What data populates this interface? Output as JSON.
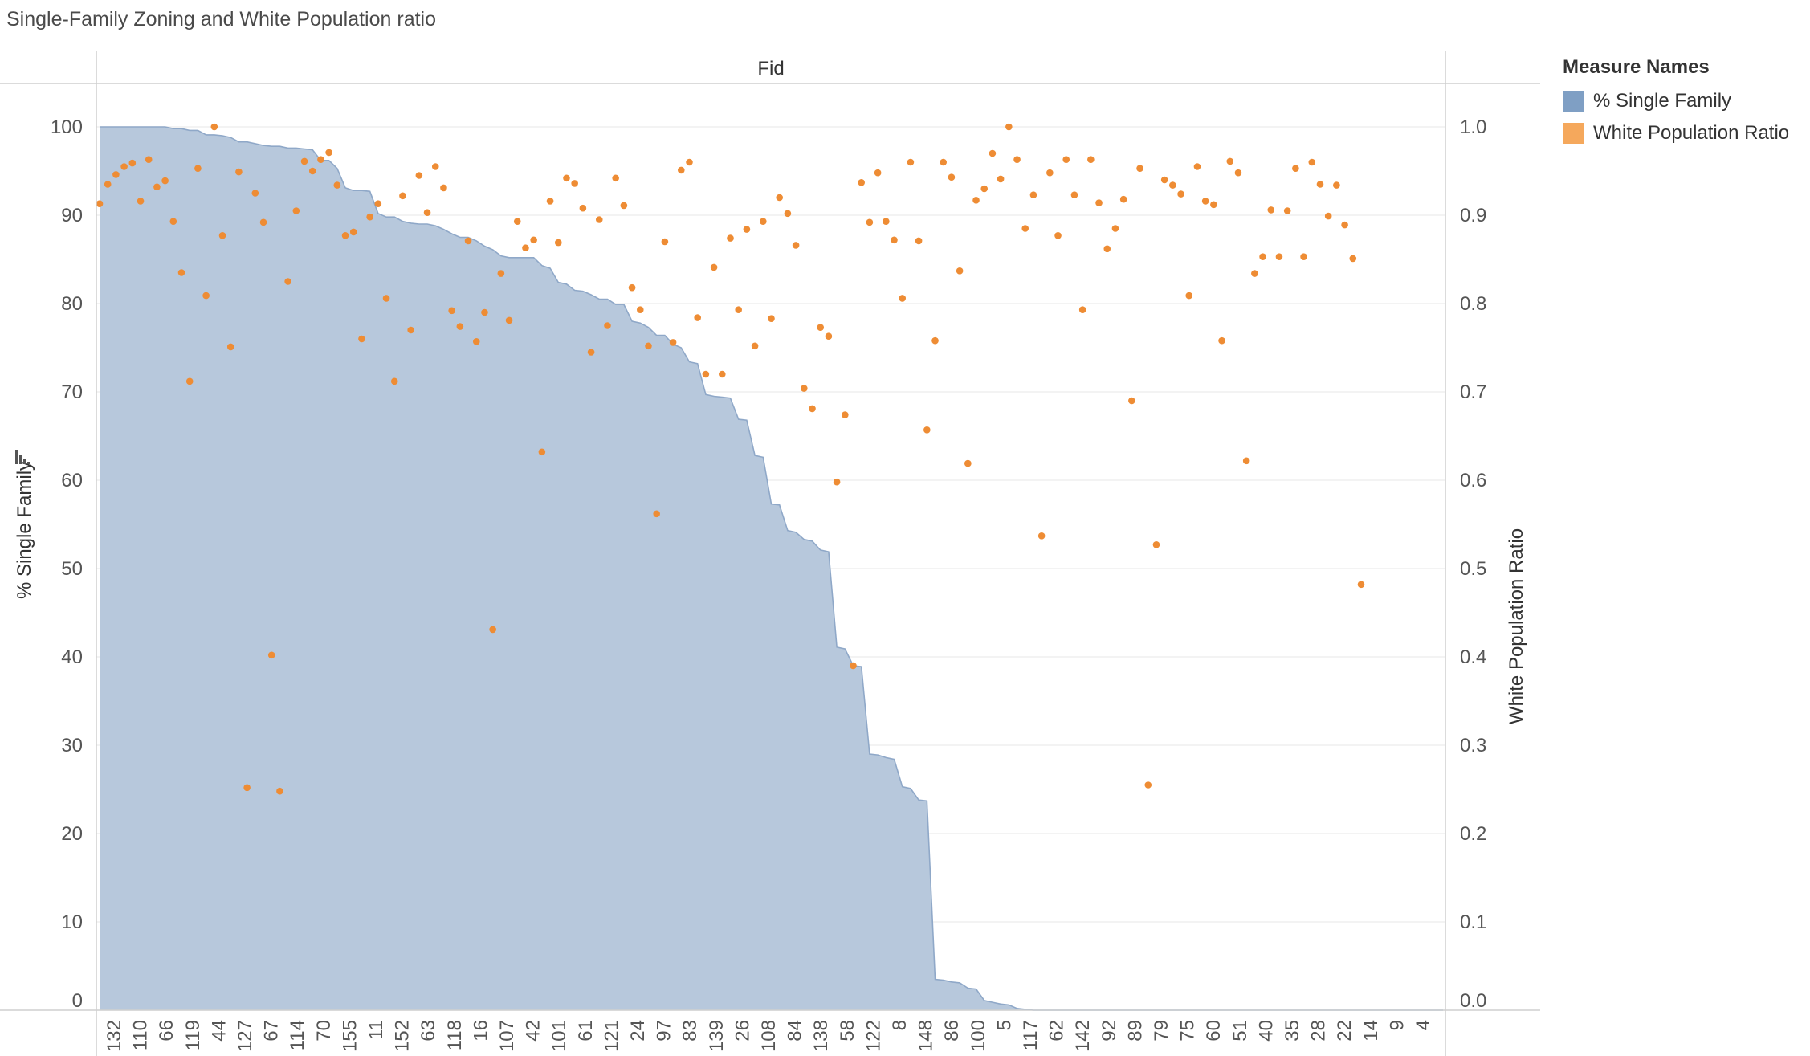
{
  "chart_data": {
    "type": "area+scatter",
    "title": "Single-Family Zoning and White Population ratio",
    "header_label": "Fid",
    "xlabel": "",
    "ylabel": "% Single Family",
    "ylabel_right": "White Population Ratio",
    "ylim": [
      0,
      100
    ],
    "ylim_right": [
      0.0,
      1.0
    ],
    "yticks": [
      0,
      10,
      20,
      30,
      40,
      50,
      60,
      70,
      80,
      90,
      100
    ],
    "yticks_right": [
      "0.0",
      "0.1",
      "0.2",
      "0.3",
      "0.4",
      "0.5",
      "0.6",
      "0.7",
      "0.8",
      "0.9",
      "1.0"
    ],
    "x_tick_labels": [
      "132",
      "110",
      "66",
      "119",
      "44",
      "127",
      "67",
      "114",
      "70",
      "155",
      "11",
      "152",
      "63",
      "118",
      "16",
      "107",
      "42",
      "101",
      "61",
      "121",
      "24",
      "97",
      "83",
      "139",
      "26",
      "108",
      "84",
      "138",
      "58",
      "122",
      "8",
      "148",
      "86",
      "100",
      "5",
      "117",
      "62",
      "142",
      "92",
      "89",
      "79",
      "75",
      "60",
      "51",
      "40",
      "35",
      "28",
      "22",
      "14",
      "9",
      "4"
    ],
    "legend": {
      "title": "Measure Names",
      "placement": "right",
      "items": [
        {
          "label": "% Single Family",
          "color": "#7f9fc4"
        },
        {
          "label": "White Population Ratio",
          "color": "#f5a85c"
        }
      ]
    },
    "series": [
      {
        "name": "% Single Family",
        "type": "area",
        "color": "#b7c8dc",
        "line_color": "#8fa8c8",
        "values": [
          100,
          100,
          100,
          100,
          100,
          100,
          100,
          100,
          100,
          99.8,
          99.8,
          99.6,
          99.6,
          99.1,
          99.1,
          99.0,
          98.8,
          98.3,
          98.3,
          98.1,
          97.9,
          97.8,
          97.8,
          97.6,
          97.6,
          97.5,
          97.4,
          96.2,
          96.2,
          95.3,
          93.1,
          92.8,
          92.8,
          92.7,
          90.2,
          89.8,
          89.8,
          89.3,
          89.1,
          89.0,
          89.0,
          88.8,
          88.4,
          87.9,
          87.5,
          87.5,
          87.1,
          86.5,
          86.1,
          85.4,
          85.2,
          85.2,
          85.2,
          85.2,
          84.3,
          84.0,
          82.4,
          82.2,
          81.5,
          81.4,
          81.0,
          80.5,
          80.5,
          79.9,
          79.9,
          78.0,
          77.8,
          77.3,
          76.4,
          76.4,
          75.4,
          75.0,
          73.4,
          73.2,
          69.7,
          69.5,
          69.4,
          69.3,
          66.9,
          66.8,
          62.8,
          62.6,
          57.3,
          57.2,
          54.3,
          54.1,
          53.3,
          53.1,
          52.1,
          51.9,
          41.1,
          40.9,
          39.0,
          38.9,
          29.0,
          28.9,
          28.6,
          28.4,
          25.3,
          25.1,
          23.8,
          23.7,
          3.5,
          3.4,
          3.2,
          3.1,
          2.5,
          2.4,
          1.1,
          0.9,
          0.7,
          0.6,
          0.2,
          0.1,
          0,
          0,
          0,
          0,
          0,
          0,
          0,
          0,
          0,
          0,
          0,
          0,
          0,
          0,
          0,
          0,
          0,
          0,
          0,
          0,
          0,
          0,
          0,
          0,
          0,
          0,
          0,
          0,
          0,
          0,
          0,
          0,
          0,
          0,
          0,
          0,
          0,
          0,
          0,
          0,
          0,
          0,
          0,
          0,
          0,
          0,
          0,
          0,
          0,
          0,
          0
        ]
      },
      {
        "name": "White Population Ratio",
        "type": "scatter",
        "color": "#ee8c34",
        "values": [
          0.913,
          0.935,
          0.946,
          0.955,
          0.959,
          0.916,
          0.963,
          0.932,
          0.939,
          0.893,
          0.835,
          0.712,
          0.953,
          0.809,
          1.0,
          0.877,
          0.751,
          0.949,
          0.252,
          0.925,
          0.892,
          0.402,
          0.248,
          0.825,
          0.905,
          0.961,
          0.95,
          0.963,
          0.971,
          0.934,
          0.877,
          0.881,
          0.76,
          0.898,
          0.913,
          0.806,
          0.712,
          0.922,
          0.77,
          0.945,
          0.903,
          0.955,
          0.931,
          0.792,
          0.774,
          0.871,
          0.757,
          0.79,
          0.431,
          0.834,
          0.781,
          0.893,
          0.863,
          0.872,
          0.632,
          0.916,
          0.869,
          0.942,
          0.936,
          0.908,
          0.745,
          0.895,
          0.775,
          0.942,
          0.911,
          0.818,
          0.793,
          0.752,
          0.562,
          0.87,
          0.756,
          0.951,
          0.96,
          0.784,
          0.72,
          0.841,
          0.72,
          0.874,
          0.793,
          0.884,
          0.752,
          0.893,
          0.783,
          0.92,
          0.902,
          0.866,
          0.704,
          0.681,
          0.773,
          0.763,
          0.598,
          0.674,
          0.39,
          0.937,
          0.892,
          0.948,
          0.893,
          0.872,
          0.806,
          0.96,
          0.871,
          0.657,
          0.758,
          0.96,
          0.943,
          0.837,
          0.619,
          0.917,
          0.93,
          0.97,
          0.941,
          1.0,
          0.963,
          0.885,
          0.923,
          0.537,
          0.948,
          0.877,
          0.963,
          0.923,
          0.793,
          0.963,
          0.914,
          0.862,
          0.885,
          0.918,
          0.69,
          0.953,
          0.255,
          0.527,
          0.94,
          0.934,
          0.924,
          0.809,
          0.955,
          0.916,
          0.912,
          0.758,
          0.961,
          0.948,
          0.622,
          0.834,
          0.853,
          0.906,
          0.853,
          0.905,
          0.953,
          0.853,
          0.96,
          0.935,
          0.899,
          0.934,
          0.889,
          0.851,
          0.482
        ]
      }
    ]
  }
}
